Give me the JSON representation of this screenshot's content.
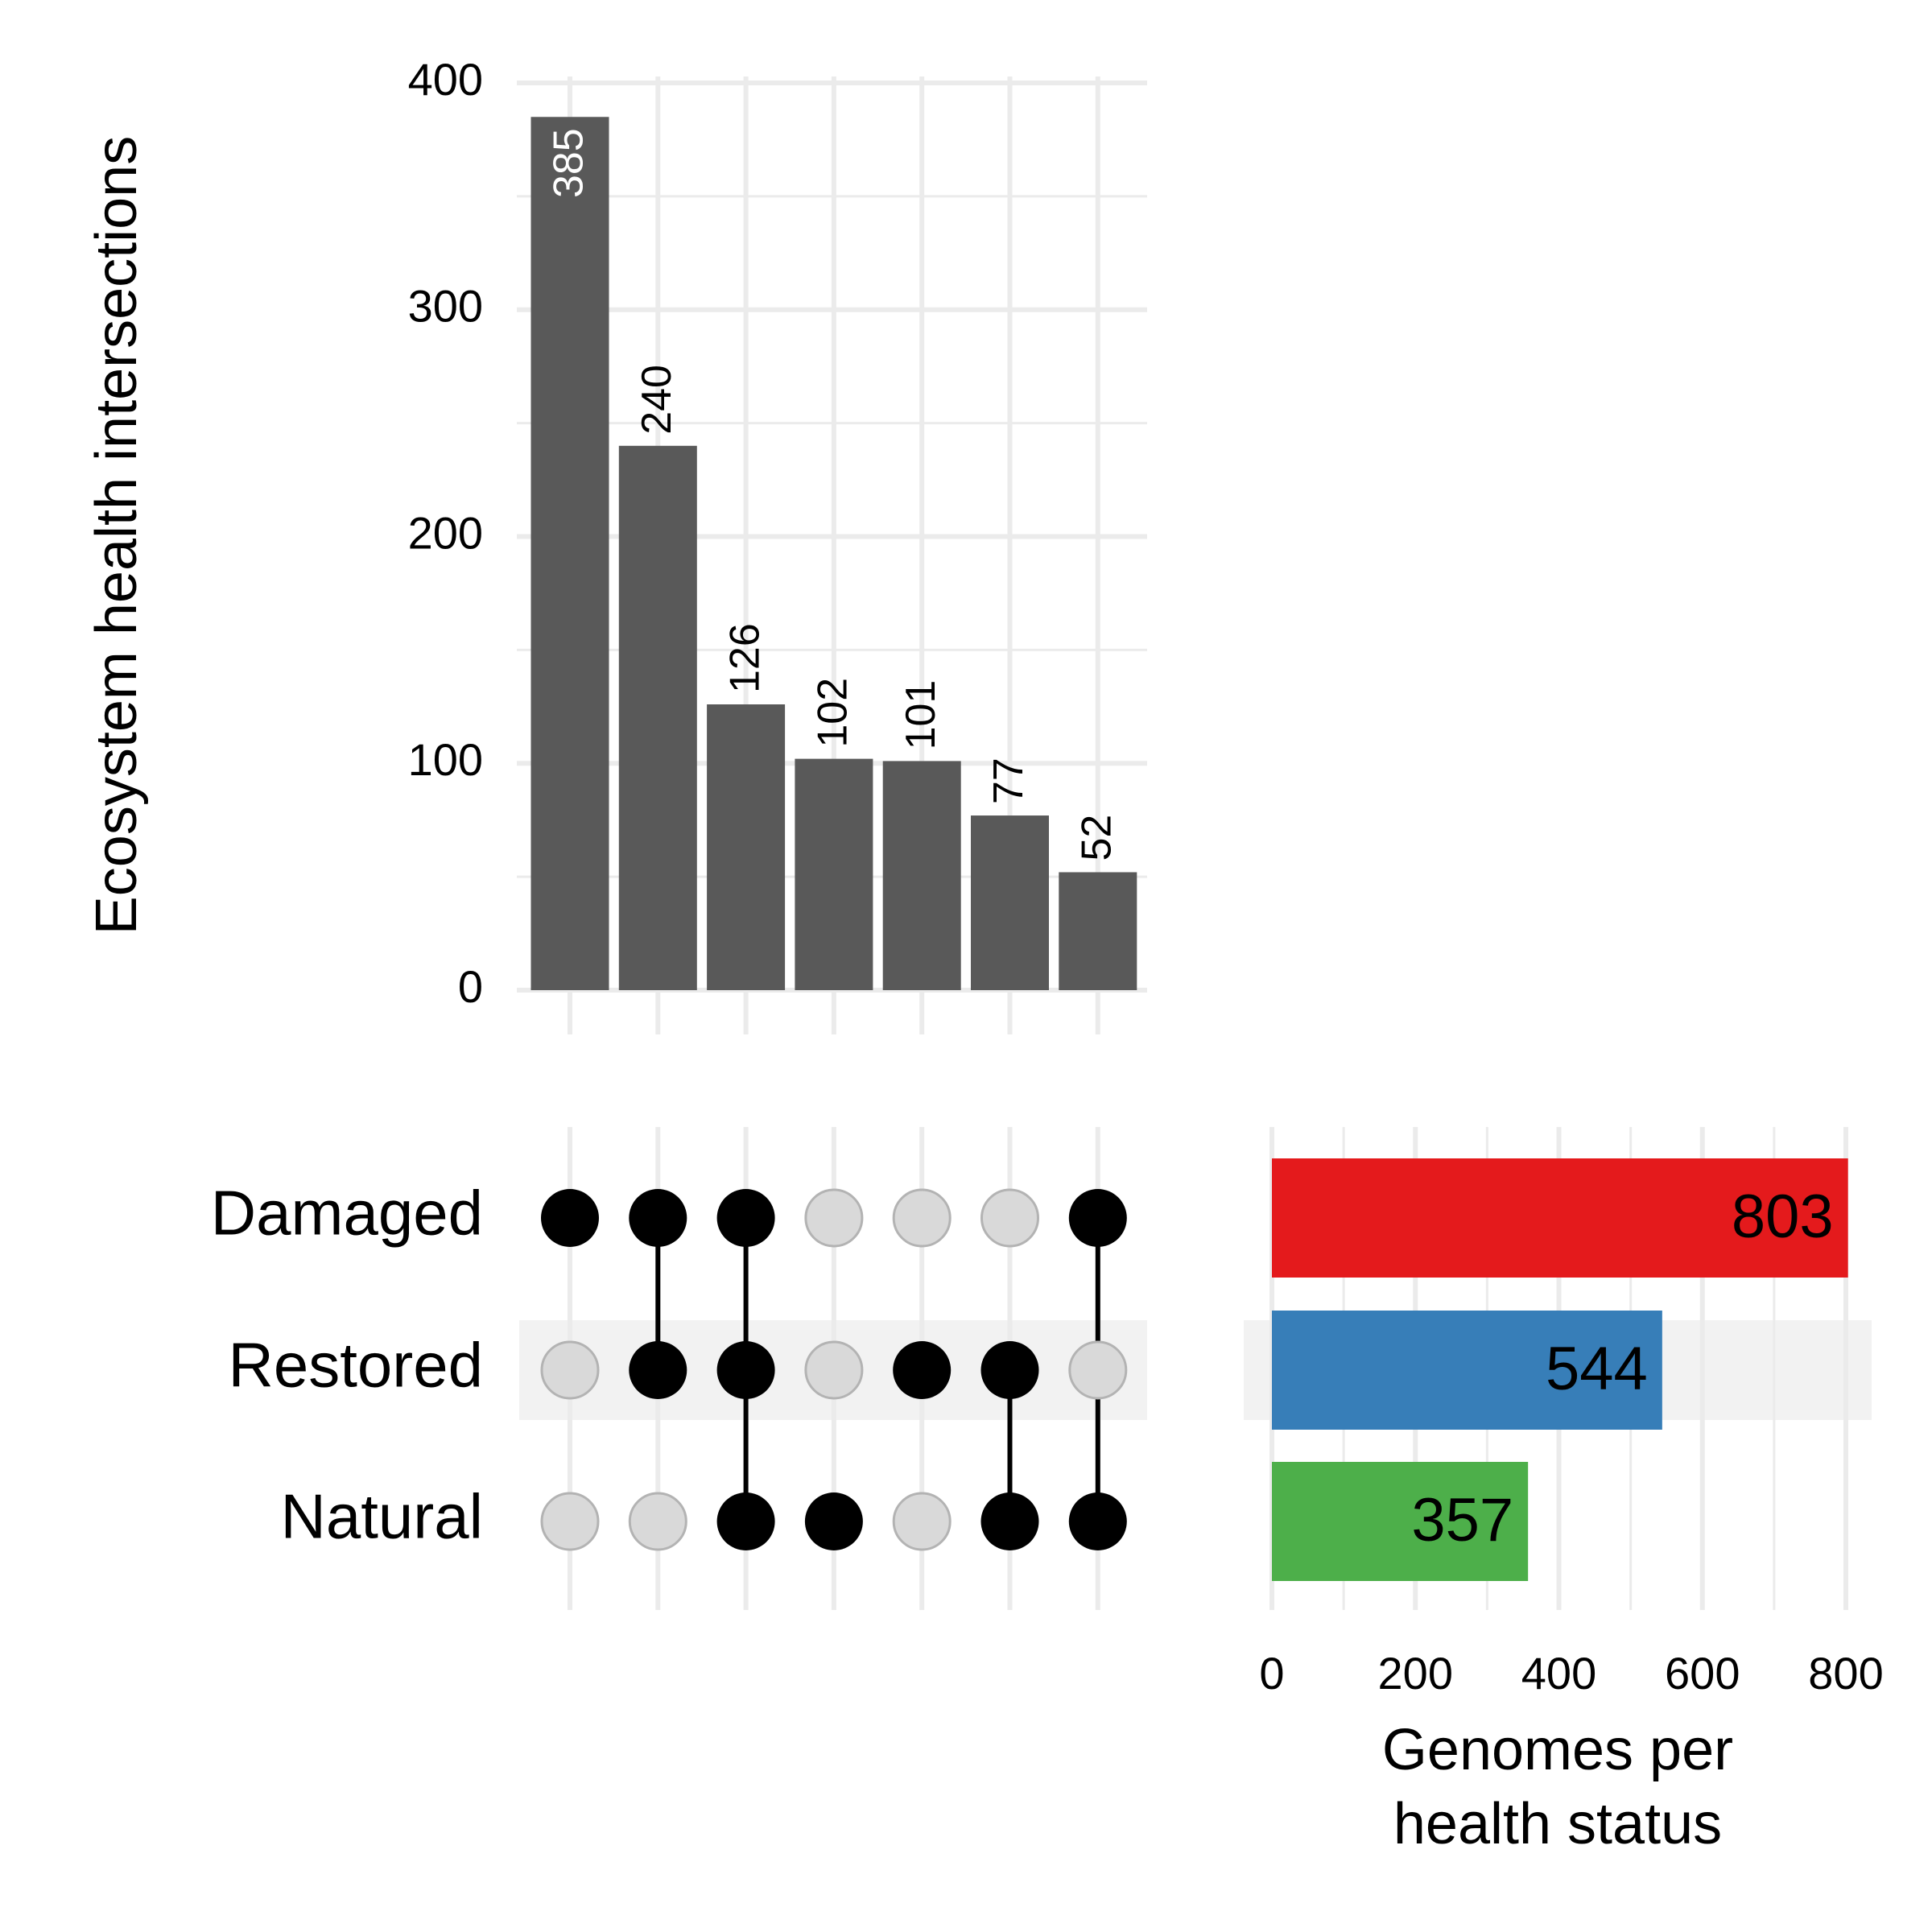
{
  "chart_data": {
    "type": "upset",
    "intersections": {
      "type": "bar",
      "values": [
        385,
        240,
        126,
        102,
        101,
        77,
        52
      ],
      "ylabel": "Ecosystem health intersections",
      "ylim": [
        0,
        400
      ],
      "yticks": [
        0,
        100,
        200,
        300,
        400
      ],
      "bar_color": "#595959",
      "grid": true
    },
    "sets": [
      "Damaged",
      "Restored",
      "Natural"
    ],
    "membership": [
      [
        "Damaged"
      ],
      [
        "Damaged",
        "Restored"
      ],
      [
        "Damaged",
        "Restored",
        "Natural"
      ],
      [
        "Natural"
      ],
      [
        "Restored"
      ],
      [
        "Restored",
        "Natural"
      ],
      [
        "Damaged",
        "Natural"
      ]
    ],
    "set_sizes": {
      "type": "bar",
      "orientation": "horizontal",
      "values": [
        803,
        544,
        357
      ],
      "colors": [
        "#e41a1c",
        "#377eb8",
        "#4daf4a"
      ],
      "xlabel_lines": [
        "Genomes per",
        "health status"
      ],
      "xlim": [
        0,
        850
      ],
      "xticks": [
        0,
        200,
        400,
        600,
        800
      ]
    },
    "dot_active_color": "#000000",
    "dot_inactive_color": "#d9d9d9",
    "stripe_color": "#f2f2f2"
  }
}
